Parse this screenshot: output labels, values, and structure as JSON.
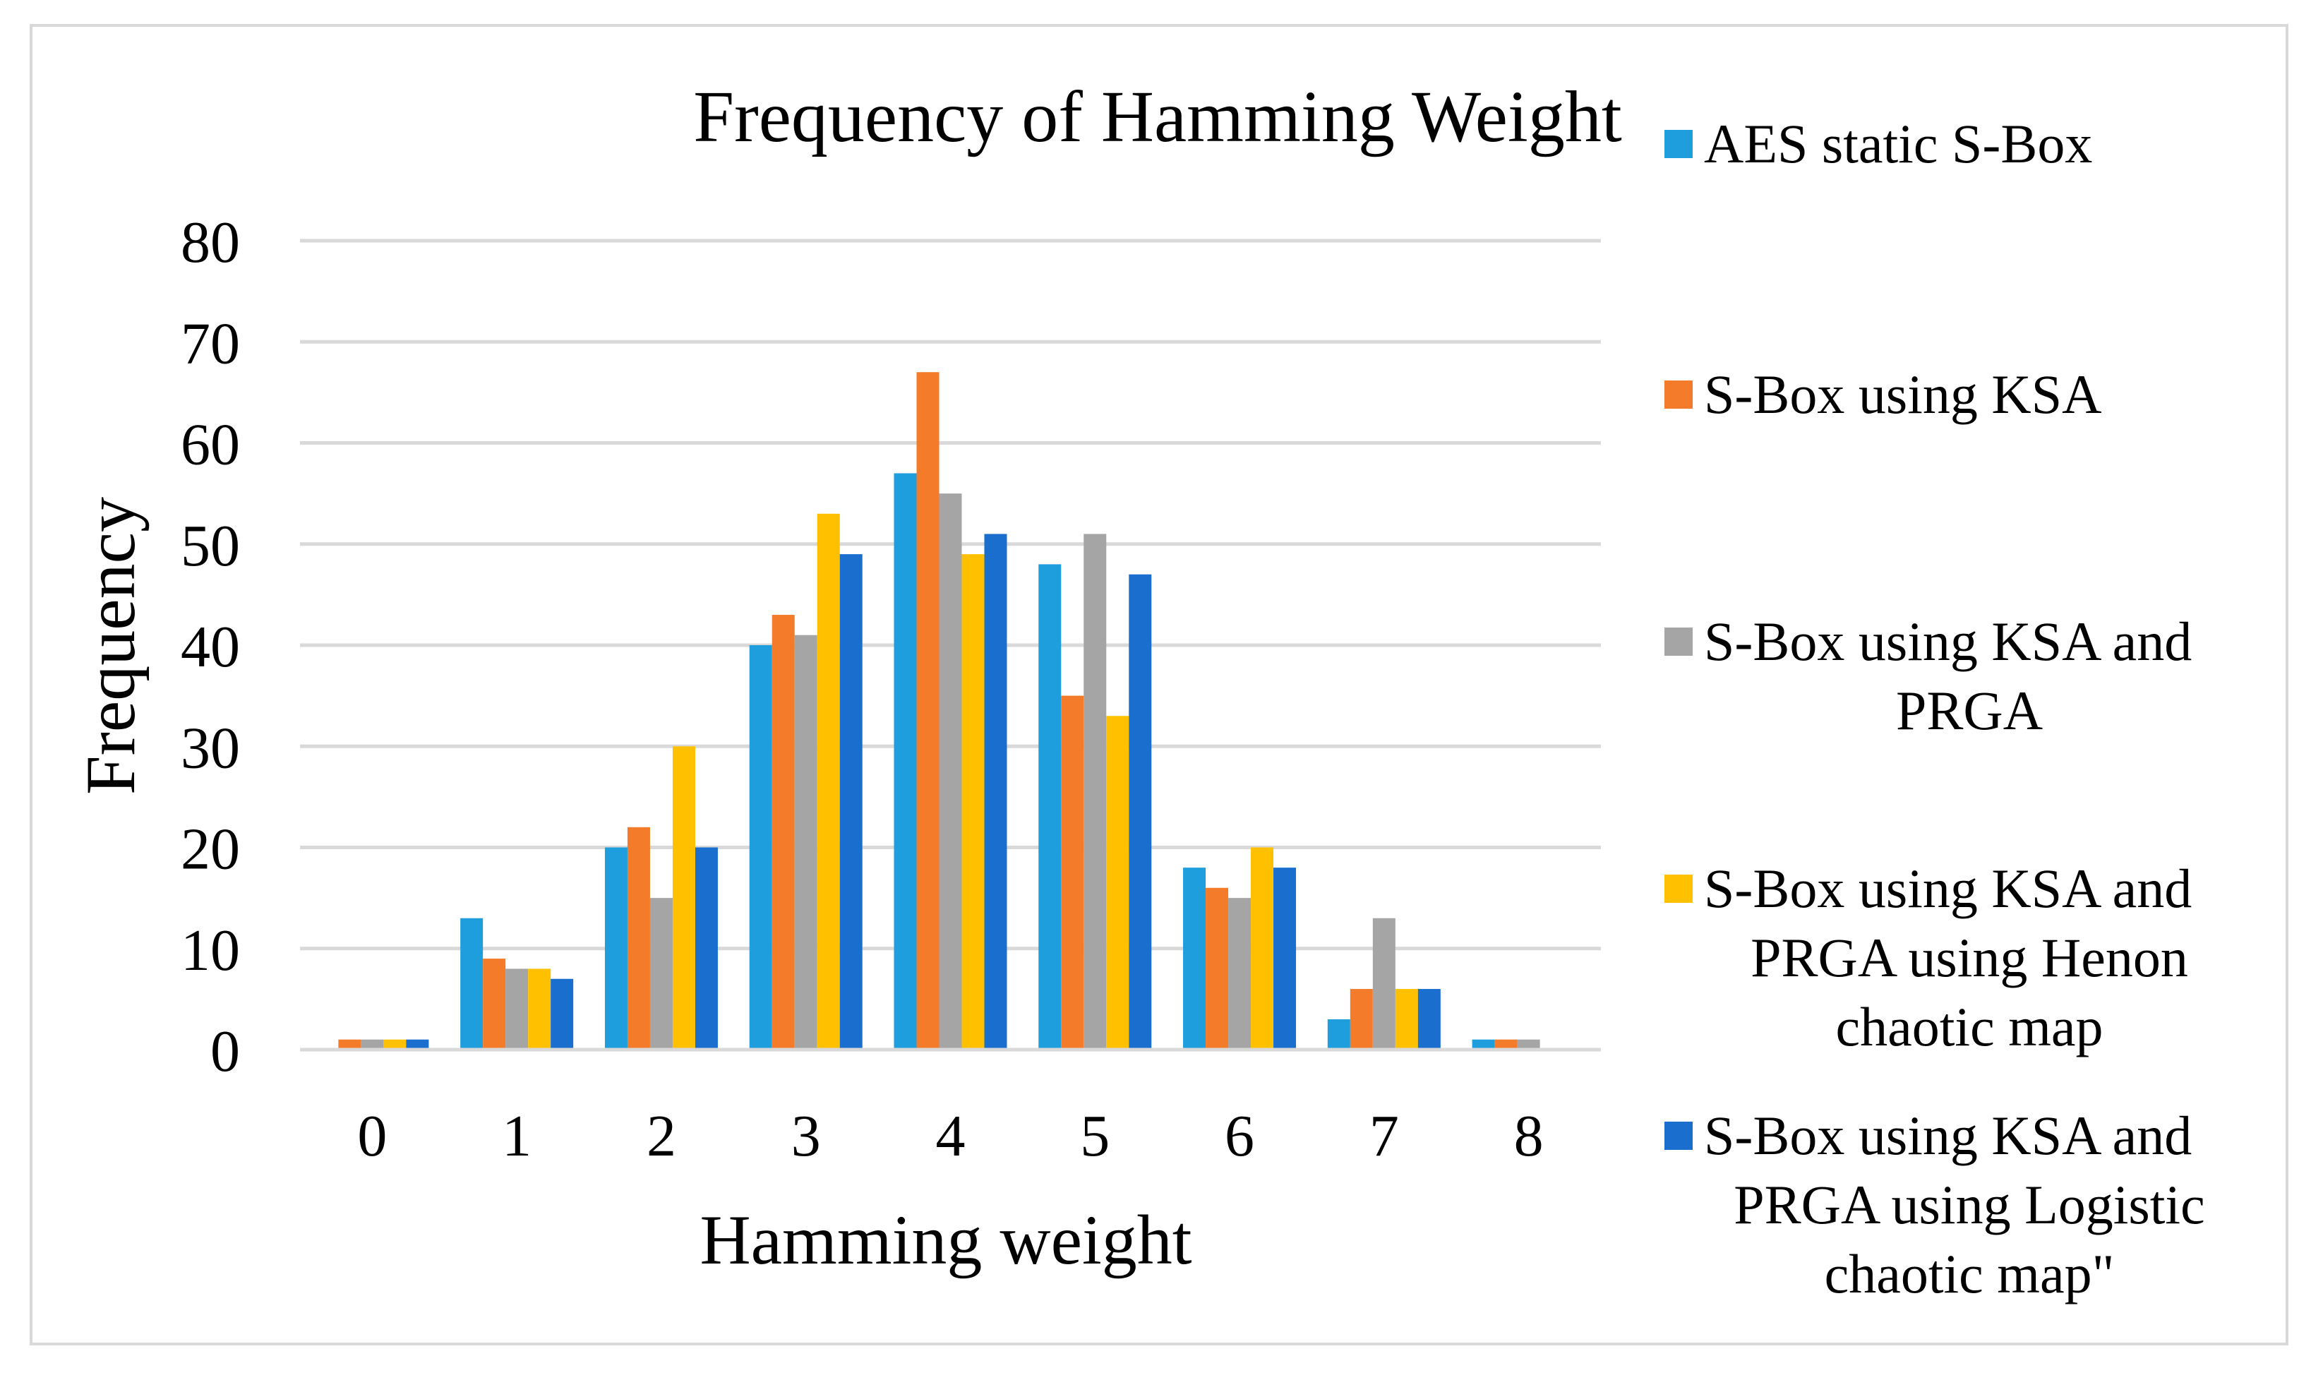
{
  "chart_data": {
    "type": "bar",
    "title": "Frequency of Hamming Weight",
    "xlabel": "Hamming weight",
    "ylabel": "Frequency",
    "ylim": [
      0,
      80
    ],
    "yticks": [
      "0",
      "10",
      "20",
      "30",
      "40",
      "50",
      "60",
      "70",
      "80"
    ],
    "categories": [
      "0",
      "1",
      "2",
      "3",
      "4",
      "5",
      "6",
      "7",
      "8"
    ],
    "grid": true,
    "legend_position": "right",
    "series": [
      {
        "name": "AES static S-Box",
        "name_lines": [
          "AES static S-Box"
        ],
        "color": "#1f9ede",
        "values": [
          0,
          13,
          20,
          40,
          57,
          48,
          18,
          3,
          1
        ]
      },
      {
        "name": "S-Box using KSA",
        "name_lines": [
          "S-Box using KSA"
        ],
        "color": "#f47b2a",
        "values": [
          1,
          9,
          22,
          43,
          67,
          35,
          16,
          6,
          1
        ]
      },
      {
        "name": "S-Box using KSA and PRGA",
        "name_lines": [
          "S-Box using KSA and",
          "PRGA"
        ],
        "color": "#a5a5a5",
        "values": [
          1,
          8,
          15,
          41,
          55,
          51,
          15,
          13,
          1
        ]
      },
      {
        "name": "S-Box using KSA and PRGA using Henon chaotic map",
        "name_lines": [
          "S-Box using KSA and",
          "PRGA using Henon",
          "chaotic map"
        ],
        "color": "#ffc000",
        "values": [
          1,
          8,
          30,
          53,
          49,
          33,
          20,
          6,
          0
        ]
      },
      {
        "name": "S-Box using KSA and PRGA using Logistic chaotic map\"",
        "name_lines": [
          "S-Box using KSA and",
          "PRGA using Logistic",
          "chaotic map\""
        ],
        "color": "#1a6fce",
        "values": [
          1,
          7,
          20,
          49,
          51,
          47,
          18,
          6,
          0
        ]
      }
    ]
  }
}
